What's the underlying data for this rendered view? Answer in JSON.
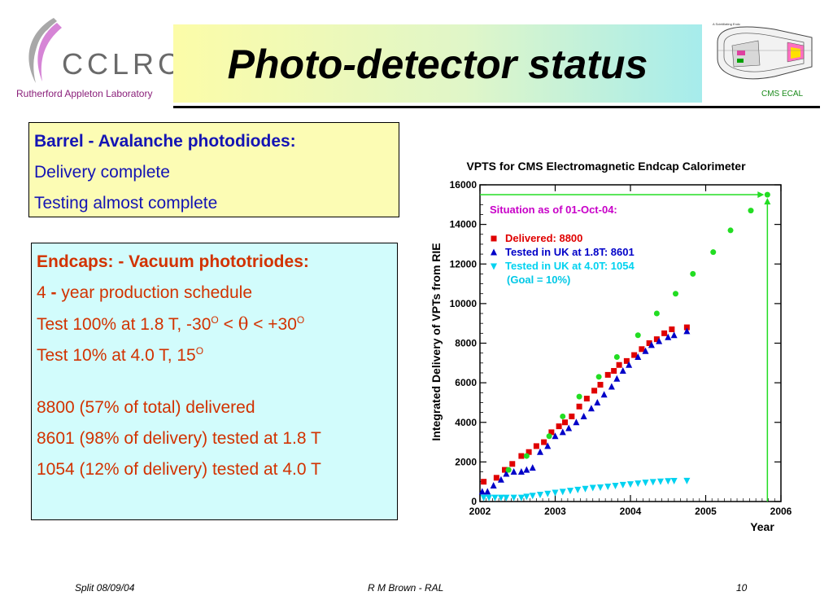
{
  "header": {
    "logo_text": "CCLRC",
    "logo_subtitle": "Rutherford Appleton Laboratory",
    "title": "Photo-detector status",
    "ecal_caption": "CMS ECAL",
    "ecal_small_label": "A Scintillating Endc"
  },
  "barrel": {
    "heading": "Barrel - Avalanche photodiodes:",
    "line1": "Delivery complete",
    "line2": "Testing almost complete"
  },
  "endcaps": {
    "heading": "Endcaps: - Vacuum phototriodes:",
    "schedule_num": "4",
    "schedule_dash": " - ",
    "schedule_rest": "year production schedule",
    "test1_a": "Test 100% at 1.8 T, -30",
    "test1_b": "O",
    "test1_c": " < ",
    "test1_d": "θ",
    "test1_e": " < +30",
    "test1_f": "O",
    "test2_a": "Test 10% at 4.0 T, 15",
    "test2_b": "O",
    "stat1": "8800 (57% of total) delivered",
    "stat2": "8601 (98% of delivery) tested at 1.8 T",
    "stat3": "1054 (12% of delivery) tested at 4.0 T"
  },
  "chart_data": {
    "type": "scatter",
    "title": "VPTS for CMS Electromagnetic Endcap Calorimeter",
    "xlabel": "Year",
    "ylabel": "Integrated Delivery of VPTs from RIE",
    "xlim": [
      2002,
      2006
    ],
    "ylim": [
      0,
      16000
    ],
    "x_ticks": [
      "2002",
      "2003",
      "2004",
      "2005",
      "2006"
    ],
    "y_ticks": [
      "0",
      "2000",
      "4000",
      "6000",
      "8000",
      "10000",
      "12000",
      "14000",
      "16000"
    ],
    "situation_text": "Situation as of 01-Oct-04:",
    "legend": [
      {
        "label": "Delivered:      8800",
        "color": "#e00000",
        "marker": "square"
      },
      {
        "label": "Tested in UK at 1.8T: 8601",
        "color": "#0000c8",
        "marker": "triangle-up"
      },
      {
        "label": "Tested in UK at 4.0T: 1054",
        "color": "#00d2f0",
        "marker": "triangle-down"
      }
    ],
    "goal_text": "(Goal =  10%)",
    "goal_color": "#00c8e6",
    "situation_color": "#c800c8",
    "series": [
      {
        "name": "Delivered",
        "color": "#e00000",
        "marker": "square",
        "points": [
          [
            2002.05,
            1000
          ],
          [
            2002.22,
            1200
          ],
          [
            2002.33,
            1600
          ],
          [
            2002.43,
            1900
          ],
          [
            2002.55,
            2300
          ],
          [
            2002.65,
            2500
          ],
          [
            2002.75,
            2800
          ],
          [
            2002.85,
            3000
          ],
          [
            2002.95,
            3500
          ],
          [
            2003.05,
            3800
          ],
          [
            2003.13,
            4000
          ],
          [
            2003.22,
            4300
          ],
          [
            2003.32,
            4800
          ],
          [
            2003.42,
            5200
          ],
          [
            2003.52,
            5600
          ],
          [
            2003.6,
            5900
          ],
          [
            2003.7,
            6400
          ],
          [
            2003.78,
            6600
          ],
          [
            2003.85,
            6900
          ],
          [
            2003.95,
            7100
          ],
          [
            2004.05,
            7400
          ],
          [
            2004.15,
            7700
          ],
          [
            2004.25,
            8000
          ],
          [
            2004.35,
            8200
          ],
          [
            2004.45,
            8500
          ],
          [
            2004.55,
            8700
          ],
          [
            2004.75,
            8800
          ]
        ]
      },
      {
        "name": "Tested in UK at 1.8T",
        "color": "#0000c8",
        "marker": "triangle-up",
        "points": [
          [
            2002.03,
            500
          ],
          [
            2002.1,
            500
          ],
          [
            2002.18,
            800
          ],
          [
            2002.28,
            1100
          ],
          [
            2002.35,
            1400
          ],
          [
            2002.45,
            1500
          ],
          [
            2002.55,
            1500
          ],
          [
            2002.62,
            1600
          ],
          [
            2002.7,
            1700
          ],
          [
            2002.8,
            2500
          ],
          [
            2002.9,
            2800
          ],
          [
            2003.0,
            3300
          ],
          [
            2003.1,
            3500
          ],
          [
            2003.18,
            3700
          ],
          [
            2003.28,
            4000
          ],
          [
            2003.38,
            4300
          ],
          [
            2003.48,
            4700
          ],
          [
            2003.56,
            5000
          ],
          [
            2003.65,
            5400
          ],
          [
            2003.75,
            5800
          ],
          [
            2003.82,
            6200
          ],
          [
            2003.9,
            6600
          ],
          [
            2003.98,
            6900
          ],
          [
            2004.1,
            7300
          ],
          [
            2004.2,
            7600
          ],
          [
            2004.28,
            7900
          ],
          [
            2004.38,
            8100
          ],
          [
            2004.5,
            8300
          ],
          [
            2004.58,
            8400
          ],
          [
            2004.75,
            8601
          ]
        ]
      },
      {
        "name": "Tested in UK at 4.0T",
        "color": "#00d2f0",
        "marker": "triangle-down",
        "points": [
          [
            2002.05,
            200
          ],
          [
            2002.12,
            200
          ],
          [
            2002.2,
            200
          ],
          [
            2002.28,
            200
          ],
          [
            2002.35,
            200
          ],
          [
            2002.45,
            200
          ],
          [
            2002.55,
            200
          ],
          [
            2002.62,
            250
          ],
          [
            2002.7,
            300
          ],
          [
            2002.8,
            350
          ],
          [
            2002.9,
            400
          ],
          [
            2003.0,
            450
          ],
          [
            2003.1,
            500
          ],
          [
            2003.2,
            550
          ],
          [
            2003.3,
            600
          ],
          [
            2003.4,
            650
          ],
          [
            2003.5,
            700
          ],
          [
            2003.6,
            720
          ],
          [
            2003.7,
            760
          ],
          [
            2003.8,
            800
          ],
          [
            2003.9,
            850
          ],
          [
            2004.0,
            880
          ],
          [
            2004.1,
            920
          ],
          [
            2004.2,
            960
          ],
          [
            2004.3,
            990
          ],
          [
            2004.4,
            1020
          ],
          [
            2004.5,
            1040
          ],
          [
            2004.58,
            1050
          ],
          [
            2004.75,
            1054
          ]
        ]
      },
      {
        "name": "",
        "color": "#22dd22",
        "marker": "circle",
        "points": [
          [
            2002.38,
            1600
          ],
          [
            2002.62,
            2300
          ],
          [
            2002.92,
            3300
          ],
          [
            2003.1,
            4300
          ],
          [
            2003.32,
            5300
          ],
          [
            2003.58,
            6300
          ],
          [
            2003.82,
            7300
          ],
          [
            2004.1,
            8400
          ],
          [
            2004.35,
            9500
          ],
          [
            2004.6,
            10500
          ],
          [
            2004.83,
            11500
          ],
          [
            2005.1,
            12600
          ],
          [
            2005.33,
            13700
          ],
          [
            2005.6,
            14700
          ],
          [
            2005.82,
            15500
          ]
        ]
      }
    ]
  },
  "footer": {
    "left": "Split 08/09/04",
    "center": "R M Brown - RAL",
    "right": "10"
  }
}
